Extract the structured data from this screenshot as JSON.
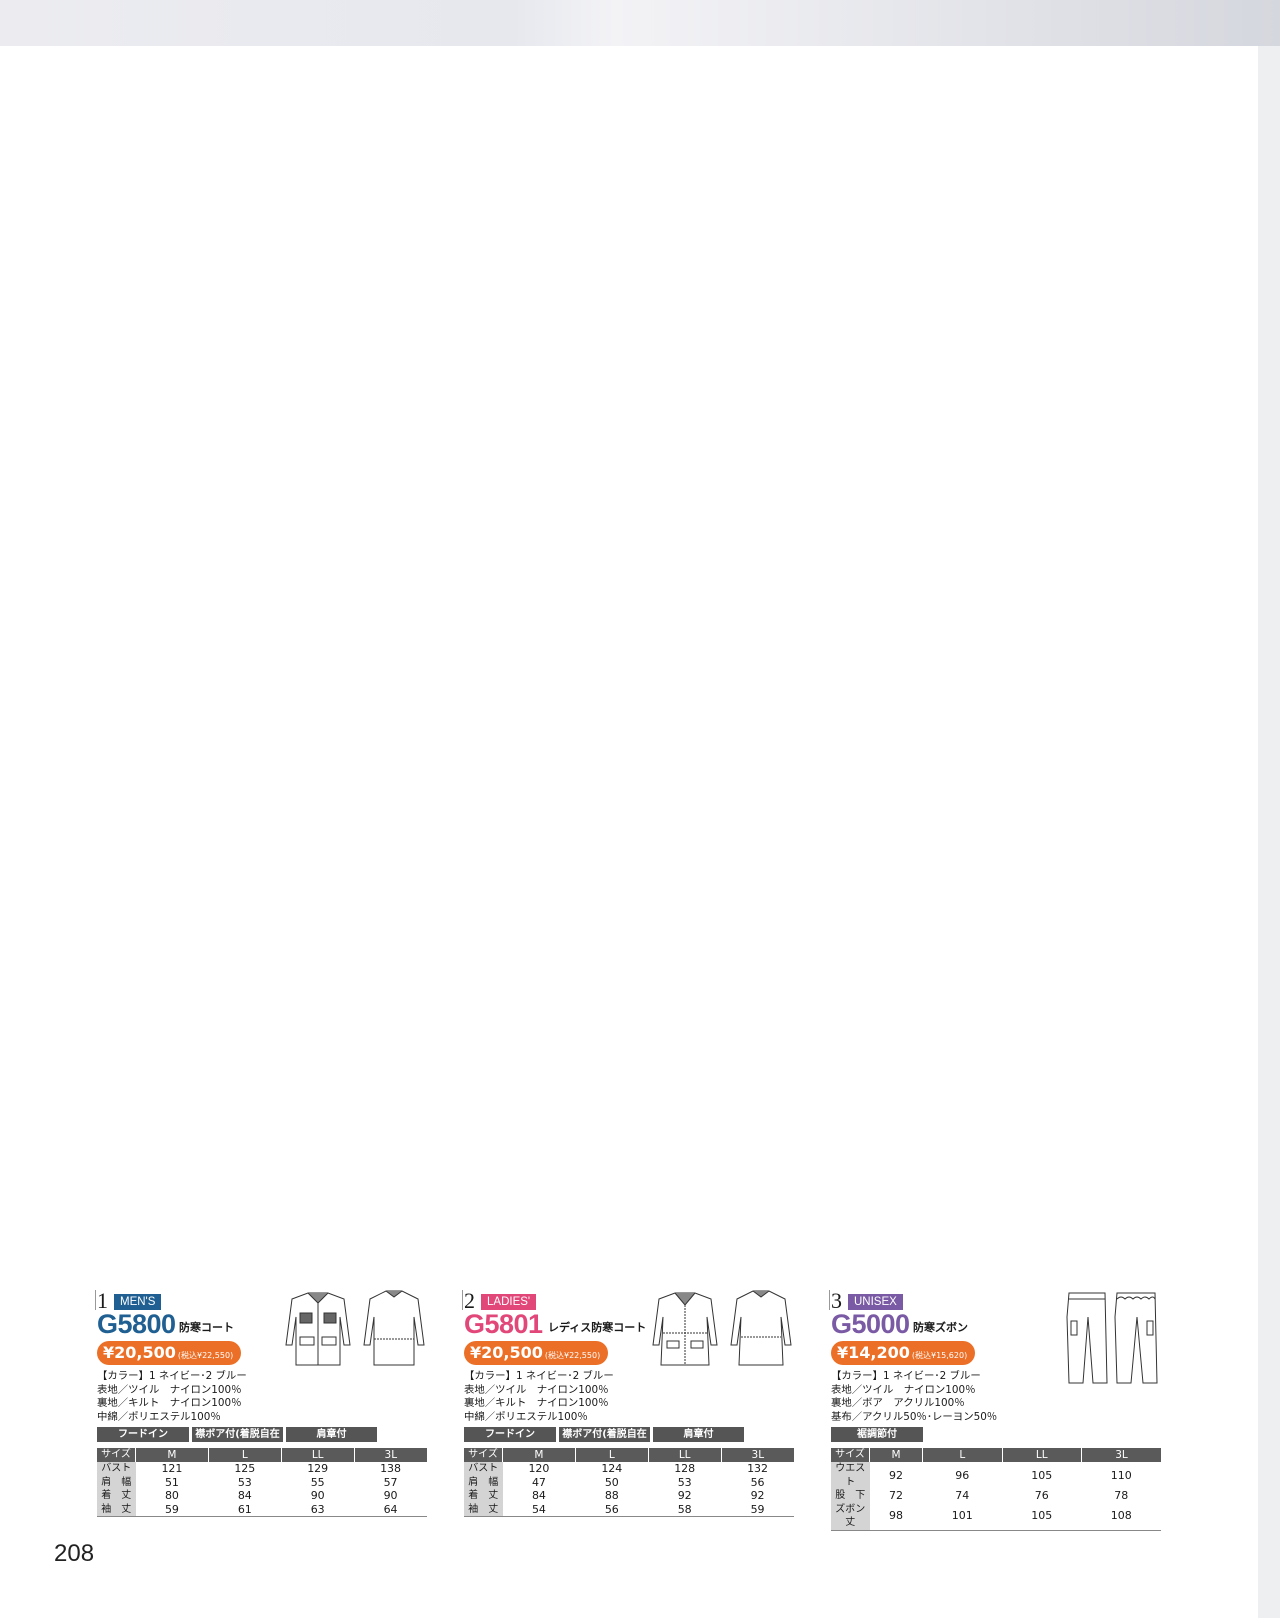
{
  "page_number": "208",
  "colors": {
    "mens": "#1f5f91",
    "ladies": "#e2477a",
    "unisex": "#7a5aa4",
    "price": "#eb6f26",
    "feature_bg": "#555555"
  },
  "products": [
    {
      "index": "1",
      "tag": "MEN'S",
      "model": "G5800",
      "name": "防寒コート",
      "price": "¥20,500",
      "price_tax": "(税込¥22,550)",
      "illustration": "coat-front-back-icon",
      "spec_lines": [
        "【カラー】1 ネイビー･2 ブルー",
        "表地／ツイル　ナイロン100％",
        "裏地／キルト　ナイロン100％",
        "中綿／ポリエステル100％"
      ],
      "features": [
        "フードイン",
        "襟ボア付(着脱自在式)",
        "肩章付"
      ],
      "size_table": {
        "headers": [
          "サイズ",
          "M",
          "L",
          "LL",
          "3L"
        ],
        "rows": [
          [
            "バスト",
            "121",
            "125",
            "129",
            "138"
          ],
          [
            "肩　幅",
            "51",
            "53",
            "55",
            "57"
          ],
          [
            "着　丈",
            "80",
            "84",
            "90",
            "90"
          ],
          [
            "袖　丈",
            "59",
            "61",
            "63",
            "64"
          ]
        ]
      }
    },
    {
      "index": "2",
      "tag": "LADIES'",
      "model": "G5801",
      "name": "レディス防寒コート",
      "price": "¥20,500",
      "price_tax": "(税込¥22,550)",
      "illustration": "ladies-coat-front-back-icon",
      "spec_lines": [
        "【カラー】1 ネイビー･2 ブルー",
        "表地／ツイル　ナイロン100％",
        "裏地／キルト　ナイロン100％",
        "中綿／ポリエステル100％"
      ],
      "features": [
        "フードイン",
        "襟ボア付(着脱自在式)",
        "肩章付"
      ],
      "size_table": {
        "headers": [
          "サイズ",
          "M",
          "L",
          "LL",
          "3L"
        ],
        "rows": [
          [
            "バスト",
            "120",
            "124",
            "128",
            "132"
          ],
          [
            "肩　幅",
            "47",
            "50",
            "53",
            "56"
          ],
          [
            "着　丈",
            "84",
            "88",
            "92",
            "92"
          ],
          [
            "袖　丈",
            "54",
            "56",
            "58",
            "59"
          ]
        ]
      }
    },
    {
      "index": "3",
      "tag": "UNISEX",
      "model": "G5000",
      "name": "防寒ズボン",
      "price": "¥14,200",
      "price_tax": "(税込¥15,620)",
      "illustration": "trousers-front-back-icon",
      "spec_lines": [
        "【カラー】1 ネイビー･2 ブルー",
        "表地／ツイル　ナイロン100％",
        "裏地／ボア　アクリル100％",
        "基布／アクリル50％･レーヨン50％"
      ],
      "features": [
        "裾調節付"
      ],
      "size_table": {
        "headers": [
          "サイズ",
          "M",
          "L",
          "LL",
          "3L"
        ],
        "rows": [
          [
            "ウエスト",
            "92",
            "96",
            "105",
            "110"
          ],
          [
            "股　下",
            "72",
            "74",
            "76",
            "78"
          ],
          [
            "ズボン丈",
            "98",
            "101",
            "105",
            "108"
          ]
        ]
      }
    }
  ]
}
